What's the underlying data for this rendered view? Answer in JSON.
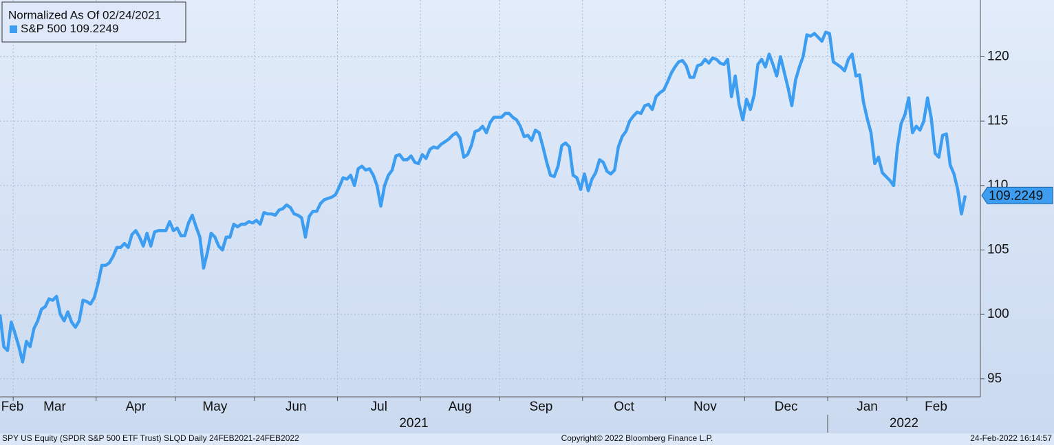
{
  "chart_data": {
    "type": "line",
    "legend_title": "Normalized As Of 02/24/2021",
    "categories": [
      "Feb",
      null,
      null,
      null,
      "Mar",
      null,
      null,
      null,
      null,
      null,
      null,
      null,
      null,
      null,
      null,
      null,
      null,
      null,
      null,
      null,
      null,
      null,
      null,
      null,
      null,
      null,
      "Apr",
      null,
      null,
      null,
      null,
      null,
      null,
      null,
      null,
      null,
      null,
      null,
      null,
      null,
      null,
      null,
      null,
      null,
      null,
      null,
      null,
      "May",
      null,
      null,
      null,
      null,
      null,
      null,
      null,
      null,
      null,
      null,
      null,
      null,
      null,
      null,
      null,
      null,
      null,
      null,
      null,
      null,
      "Jun",
      null,
      null,
      null,
      null,
      null,
      null,
      null,
      null,
      null,
      null,
      null,
      null,
      null,
      null,
      null,
      null,
      null,
      null,
      null,
      null,
      null,
      "Jul",
      null,
      null,
      null,
      null,
      null,
      null,
      null,
      null,
      null,
      null,
      null,
      null,
      null,
      null,
      null,
      null,
      null,
      null,
      null,
      null,
      null,
      "Aug",
      null,
      null,
      null,
      null,
      null,
      null,
      null,
      null,
      null,
      null,
      null,
      null,
      null,
      null,
      null,
      null,
      null,
      null,
      null,
      null,
      "Sep",
      null,
      null,
      null,
      null,
      null,
      null,
      null,
      null,
      null,
      null,
      null,
      null,
      null,
      null,
      null,
      null,
      null,
      null,
      null,
      null,
      null,
      "Oct",
      null,
      null,
      null,
      null,
      null,
      null,
      null,
      null,
      null,
      null,
      null,
      null,
      null,
      null,
      null,
      null,
      null,
      null,
      null,
      null,
      null,
      "Nov",
      null,
      null,
      null,
      null,
      null,
      null,
      null,
      null,
      null,
      null,
      null,
      null,
      null,
      null,
      null,
      null,
      null,
      null,
      null,
      null,
      "Dec",
      null,
      null,
      null,
      null,
      null,
      null,
      null,
      null,
      null,
      null,
      null,
      null,
      null,
      null,
      null,
      null,
      null,
      null,
      null,
      null,
      null,
      "Jan",
      null,
      null,
      null,
      null,
      null,
      null,
      null,
      null,
      null,
      null,
      null,
      null,
      null,
      null,
      null,
      null,
      null,
      null,
      null,
      null,
      "Feb",
      null,
      null,
      null,
      null,
      null,
      null,
      null,
      null,
      null,
      null,
      null,
      null,
      null,
      null,
      null
    ],
    "year_labels": [
      "2021",
      "2022"
    ],
    "series": [
      {
        "name": "S&P 500",
        "color": "#3d9df0",
        "last_label": "109.2249",
        "values": [
          100,
          97.5,
          97.2,
          99.4,
          98.5,
          97.5,
          96.3,
          97.9,
          97.5,
          98.9,
          99.5,
          100.4,
          100.6,
          101.2,
          101.1,
          101.4,
          100.0,
          99.5,
          100.2,
          99.4,
          99.0,
          99.5,
          101.1,
          101.0,
          100.8,
          101.3,
          102.4,
          103.8,
          103.8,
          104.0,
          104.5,
          105.2,
          105.2,
          105.5,
          105.2,
          106.2,
          106.5,
          106.0,
          105.3,
          106.3,
          105.3,
          106.4,
          106.5,
          106.5,
          106.5,
          107.2,
          106.5,
          106.7,
          106.1,
          106.1,
          107.1,
          107.7,
          106.8,
          106.0,
          103.6,
          104.8,
          106.3,
          106.0,
          105.3,
          105.0,
          106.0,
          106.0,
          107.0,
          106.8,
          107.0,
          107.0,
          107.2,
          107.1,
          107.3,
          107.0,
          107.9,
          107.8,
          107.8,
          107.7,
          108.1,
          108.2,
          108.5,
          108.3,
          107.8,
          107.7,
          107.5,
          106.0,
          107.6,
          108.0,
          108.0,
          108.6,
          108.9,
          109.0,
          109.1,
          109.3,
          109.9,
          110.6,
          110.5,
          110.8,
          110.0,
          111.3,
          111.5,
          111.2,
          111.3,
          110.8,
          110.0,
          108.4,
          110.0,
          110.8,
          111.2,
          112.3,
          112.4,
          112.0,
          112.0,
          112.3,
          111.8,
          111.7,
          112.4,
          112.1,
          112.8,
          113.0,
          112.9,
          113.2,
          113.4,
          113.6,
          113.9,
          114.1,
          113.7,
          112.2,
          112.4,
          113.1,
          114.2,
          114.3,
          114.6,
          114.1,
          114.9,
          115.3,
          115.3,
          115.3,
          115.6,
          115.6,
          115.3,
          115.1,
          114.6,
          113.8,
          113.9,
          113.5,
          114.3,
          114.1,
          113.0,
          111.8,
          110.8,
          110.7,
          111.5,
          113.1,
          113.3,
          113.0,
          110.8,
          110.6,
          109.7,
          110.9,
          109.6,
          110.5,
          111.0,
          112.0,
          111.8,
          111.1,
          110.9,
          111.2,
          113.0,
          113.8,
          114.2,
          115.0,
          115.4,
          115.7,
          115.6,
          116.2,
          116.3,
          115.9,
          116.9,
          117.2,
          117.4,
          118.0,
          118.7,
          119.2,
          119.6,
          119.7,
          119.3,
          118.4,
          118.4,
          119.3,
          119.4,
          119.8,
          119.5,
          119.9,
          119.8,
          119.5,
          119.4,
          119.8,
          116.9,
          118.5,
          116.3,
          115.1,
          116.7,
          115.9,
          117.0,
          119.4,
          119.8,
          119.2,
          120.2,
          119.4,
          118.5,
          120.0,
          118.8,
          117.6,
          116.2,
          118.2,
          119.2,
          120.0,
          121.7,
          121.6,
          121.8,
          121.5,
          121.2,
          121.9,
          121.8,
          119.6,
          119.4,
          119.2,
          118.9,
          119.8,
          120.2,
          118.5,
          118.6,
          116.5,
          115.2,
          114.1,
          111.7,
          112.2,
          111.0,
          110.7,
          110.4,
          110.0,
          113.0,
          114.8,
          115.5,
          116.8,
          114.1,
          114.6,
          114.3,
          115.0,
          116.8,
          115.2,
          112.5,
          112.2,
          113.9,
          114.0,
          111.6,
          110.9,
          109.7,
          107.8,
          109.2249
        ]
      }
    ],
    "ylim": [
      93.6,
      124.4
    ],
    "yticks": [
      95,
      100,
      105,
      110,
      115,
      120
    ],
    "grid": true
  },
  "footer": {
    "left": "SPY US Equity (SPDR S&P 500 ETF Trust) SLQD  Daily 24FEB2021-24FEB2022",
    "center": "Copyright© 2022 Bloomberg Finance L.P.",
    "right": "24-Feb-2022 16:14:57"
  }
}
